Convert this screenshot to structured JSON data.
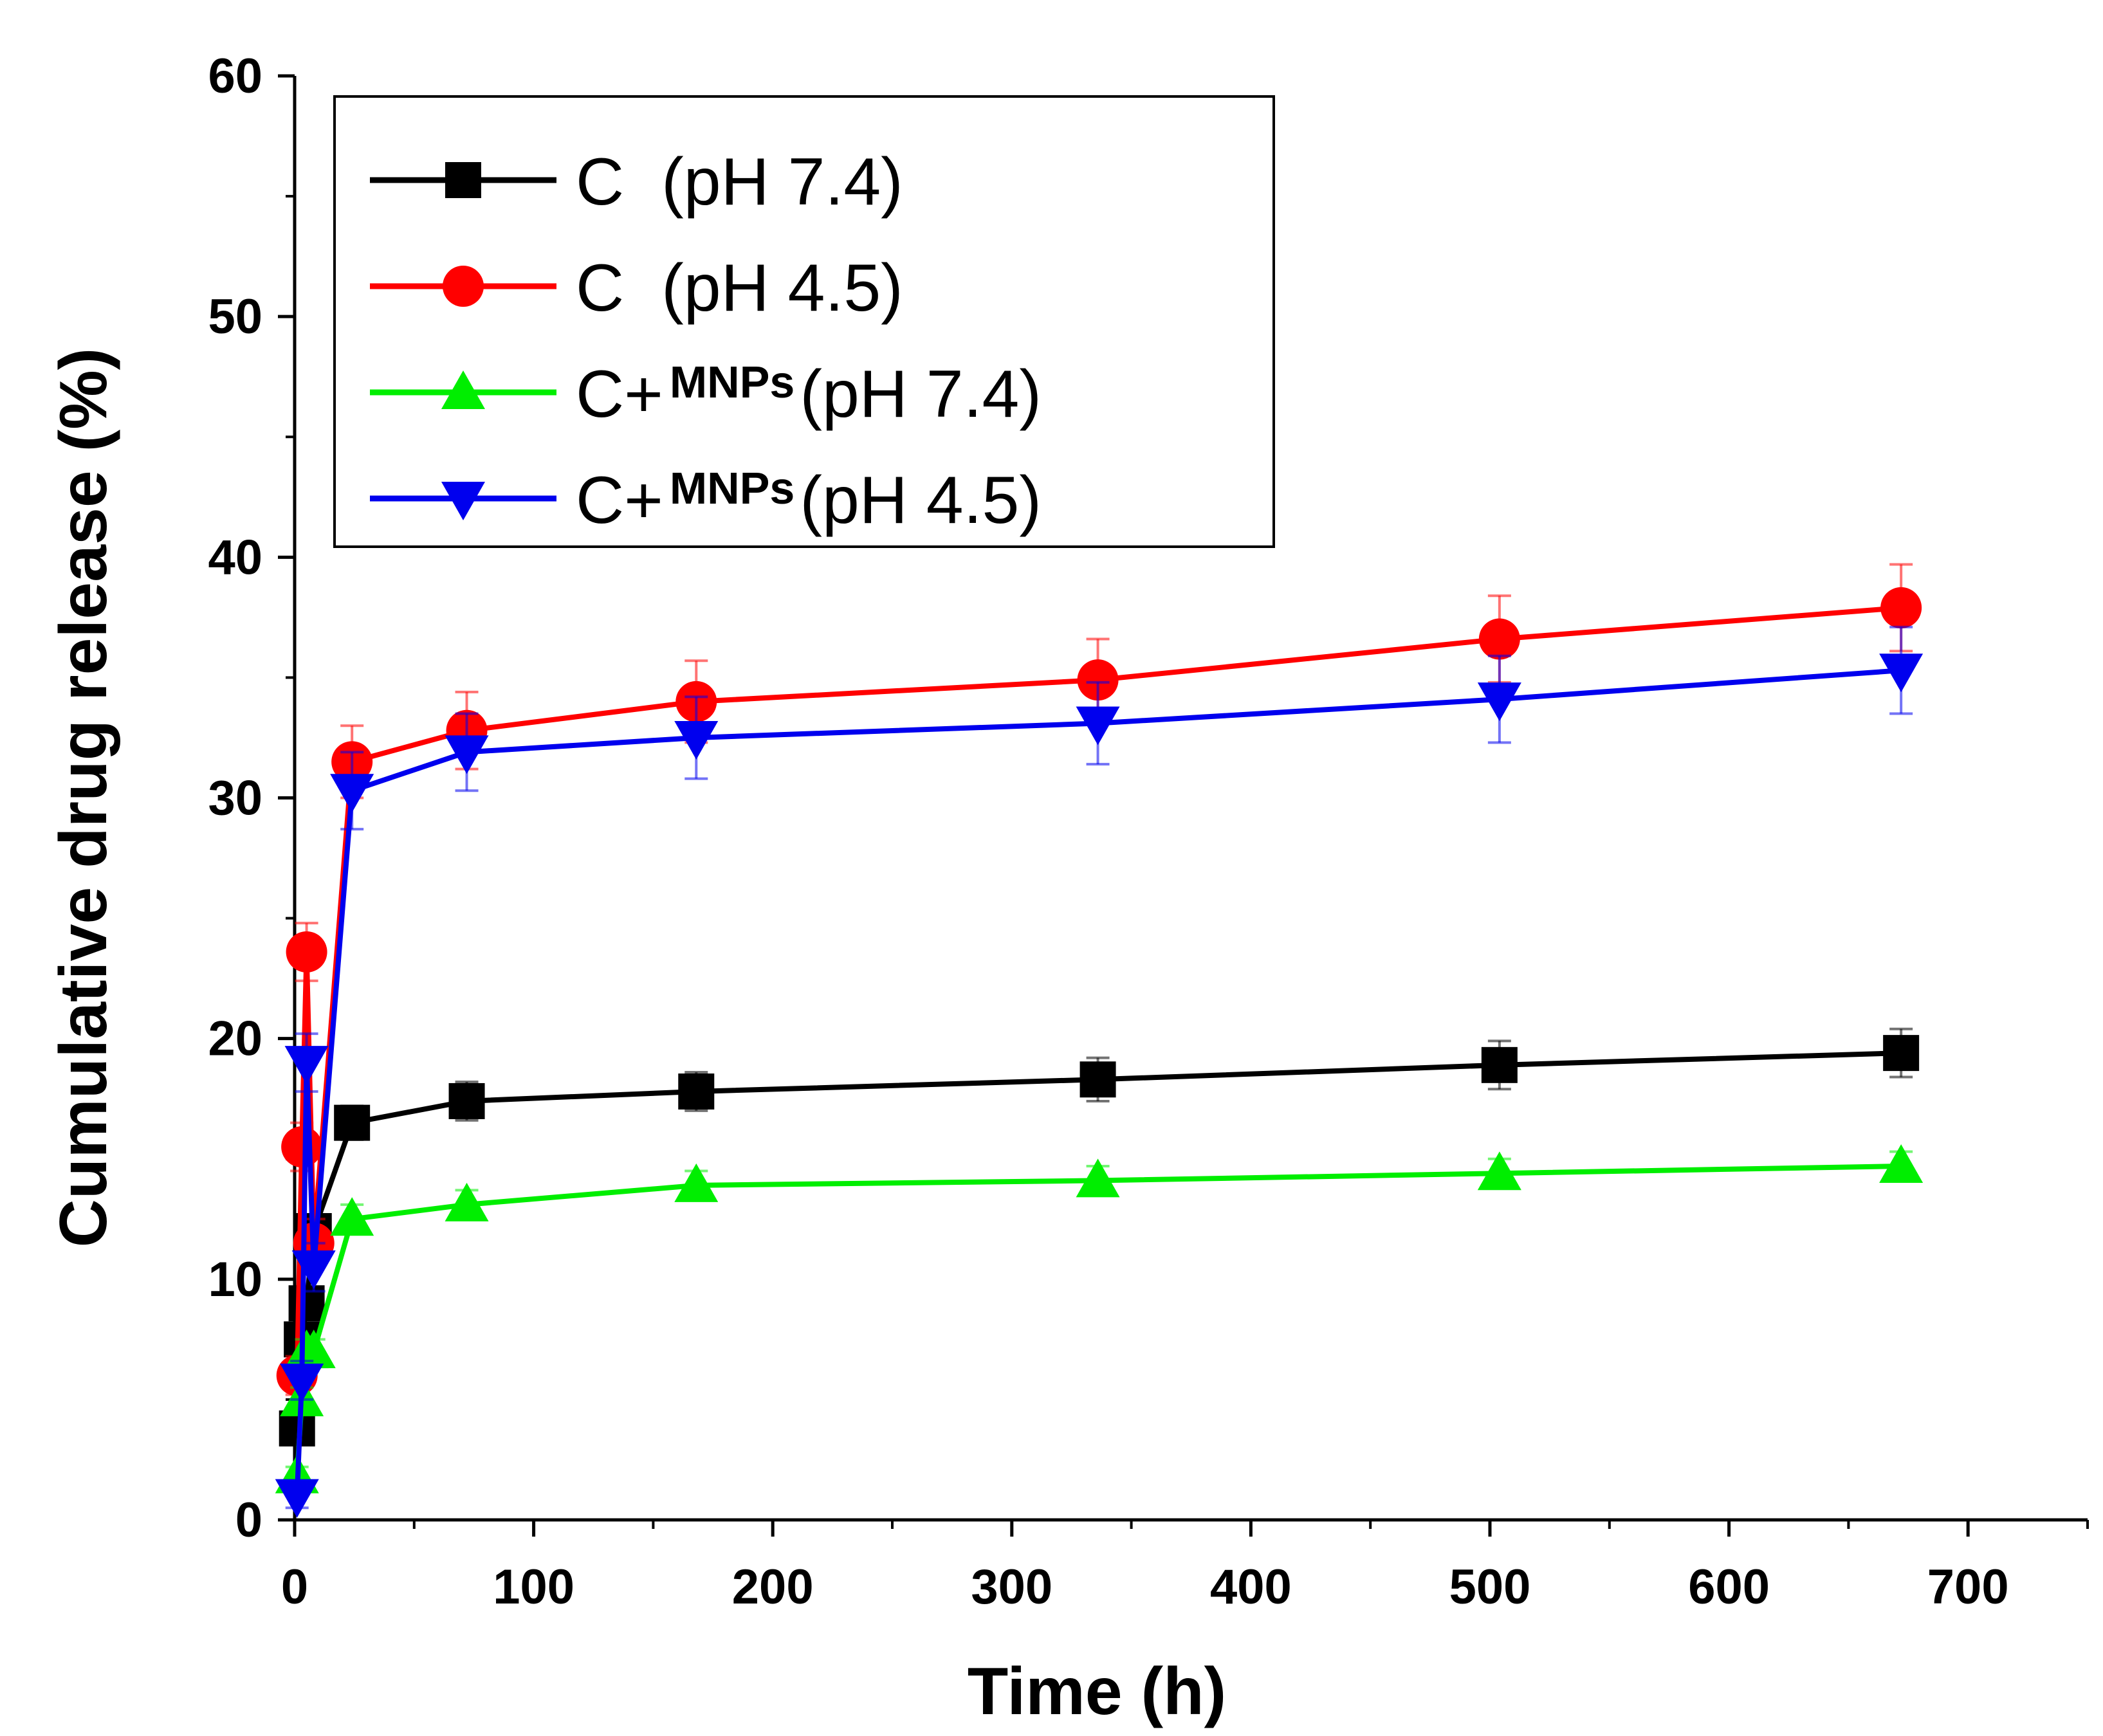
{
  "chart_data": {
    "type": "line",
    "title": "",
    "xlabel": "Time (h)",
    "ylabel": "Cumulative drug release (%)",
    "xlim": [
      0,
      750
    ],
    "ylim": [
      0,
      60
    ],
    "xticks": [
      0,
      100,
      200,
      300,
      400,
      500,
      600,
      700
    ],
    "yticks": [
      0,
      10,
      20,
      30,
      40,
      50,
      60
    ],
    "xtick_labels": [
      "0",
      "100",
      "200",
      "300",
      "400",
      "500",
      "600",
      "700"
    ],
    "ytick_labels": [
      "0",
      "10",
      "20",
      "30",
      "40",
      "50",
      "60"
    ],
    "grid": false,
    "legend_position": "top-left",
    "x": [
      1,
      3,
      5,
      8,
      24,
      72,
      168,
      336,
      504,
      672
    ],
    "series": [
      {
        "name": "C (pH 7.4)",
        "label_main": "C",
        "label_sub": "",
        "label_ph": "(pH 7.4)",
        "color": "#000000",
        "marker": "square",
        "values": [
          3.8,
          7.5,
          9.0,
          12.0,
          16.5,
          17.4,
          17.8,
          18.3,
          18.9,
          19.4
        ],
        "errors": [
          0.6,
          0.6,
          0.6,
          0.6,
          0.7,
          0.8,
          0.8,
          0.9,
          1.0,
          1.0
        ]
      },
      {
        "name": "C (pH 4.5)",
        "label_main": "C",
        "label_sub": "",
        "label_ph": "(pH 4.5)",
        "color": "#ff0000",
        "marker": "circle",
        "values": [
          6.0,
          15.5,
          23.6,
          11.5,
          31.5,
          32.8,
          34.0,
          34.9,
          36.6,
          37.9
        ],
        "errors": [
          0.8,
          1.0,
          1.2,
          1.0,
          1.5,
          1.6,
          1.7,
          1.7,
          1.8,
          1.8
        ]
      },
      {
        "name": "C+MNPs (pH 7.4)",
        "label_main": "C+",
        "label_sub": "MNPs",
        "label_ph": "(pH 7.4)",
        "color": "#00ee00",
        "marker": "triangle-up",
        "values": [
          1.8,
          5.0,
          7.0,
          7.0,
          12.5,
          13.1,
          13.9,
          14.1,
          14.4,
          14.7
        ],
        "errors": [
          0.4,
          0.5,
          0.5,
          0.5,
          0.6,
          0.6,
          0.6,
          0.6,
          0.6,
          0.6
        ]
      },
      {
        "name": "C+MNPs (pH 4.5)",
        "label_main": "C+",
        "label_sub": "MNPs",
        "label_ph": "(pH 4.5)",
        "color": "#0000ee",
        "marker": "triangle-down",
        "values": [
          1.0,
          5.8,
          19.0,
          10.5,
          30.3,
          31.9,
          32.5,
          33.1,
          34.1,
          35.3
        ],
        "errors": [
          0.5,
          0.8,
          1.2,
          1.0,
          1.6,
          1.6,
          1.7,
          1.7,
          1.8,
          1.8
        ]
      }
    ]
  }
}
